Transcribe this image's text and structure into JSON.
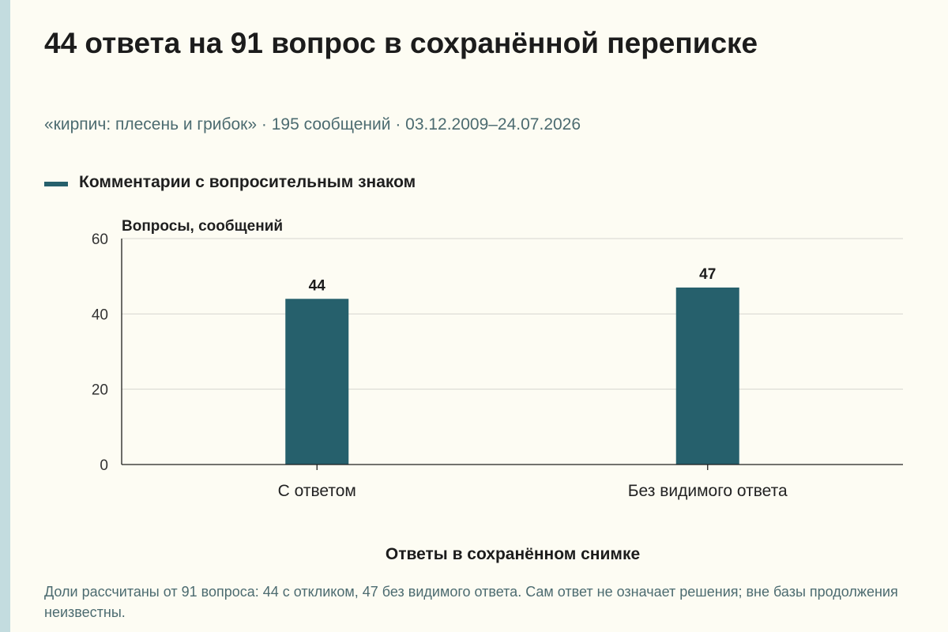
{
  "header": {
    "title": "44 ответа на 91 вопрос в сохранённой переписке",
    "subtitle": "«кирпич: плесень и грибок» · 195 сообщений · 03.12.2009–24.07.2026"
  },
  "footnote": "Доли рассчитаны от 91 вопроса: 44 с откликом, 47 без видимого ответа. Сам ответ не означает решения; вне базы продолжения неизвестны.",
  "colors": {
    "bar": "#26606c",
    "grid": "#d6d6d0",
    "axis": "#1f1f1f",
    "accent_strip": "#c3dcdf"
  },
  "chart_data": {
    "type": "bar",
    "categories": [
      "С ответом",
      "Без видимого ответа"
    ],
    "series": [
      {
        "name": "Комментарии с вопросительным знаком",
        "values": [
          44,
          47
        ]
      }
    ],
    "ylabel": "Вопросы, сообщений",
    "xlabel": "Ответы в сохранённом снимке",
    "ylim": [
      0,
      60
    ],
    "yticks": [
      0,
      20,
      40,
      60
    ],
    "grid": true,
    "legend_position": "top-left"
  }
}
